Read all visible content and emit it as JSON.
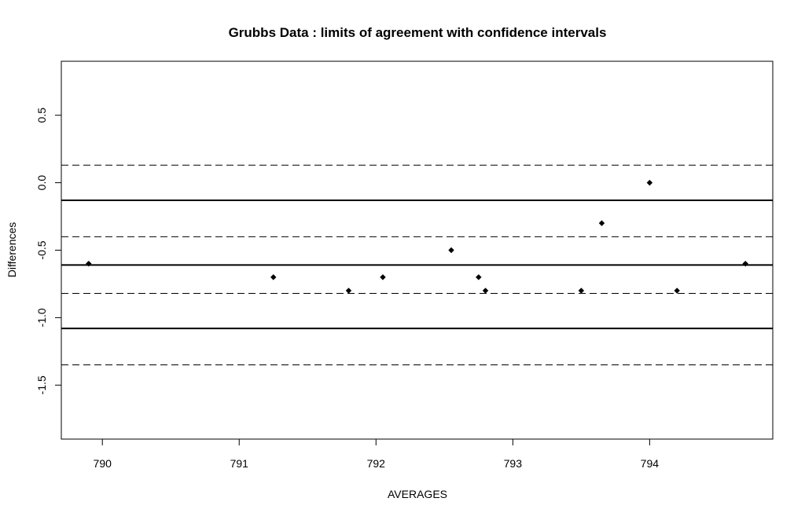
{
  "chart_data": {
    "type": "scatter",
    "title": "Grubbs Data : limits of agreement with confidence intervals",
    "xlabel": "AVERAGES",
    "ylabel": "Differences",
    "xlim": [
      789.7,
      794.9
    ],
    "ylim": [
      -1.9,
      0.9
    ],
    "x_ticks": [
      790,
      791,
      792,
      793,
      794
    ],
    "x_tick_labels": [
      "790",
      "791",
      "792",
      "793",
      "794"
    ],
    "y_ticks": [
      0.5,
      0.0,
      -0.5,
      -1.0,
      -1.5
    ],
    "y_tick_labels": [
      "0.5",
      "0.0",
      "-0.5",
      "-1.0",
      "-1.5"
    ],
    "grid": false,
    "points": [
      {
        "x": 789.9,
        "y": -0.6
      },
      {
        "x": 791.25,
        "y": -0.7
      },
      {
        "x": 791.8,
        "y": -0.8
      },
      {
        "x": 792.05,
        "y": -0.7
      },
      {
        "x": 792.55,
        "y": -0.5
      },
      {
        "x": 792.75,
        "y": -0.7
      },
      {
        "x": 792.8,
        "y": -0.8
      },
      {
        "x": 793.5,
        "y": -0.8
      },
      {
        "x": 793.65,
        "y": -0.3
      },
      {
        "x": 794.0,
        "y": 0.0
      },
      {
        "x": 794.2,
        "y": -0.8
      },
      {
        "x": 794.7,
        "y": -0.6
      }
    ],
    "solid_lines": [
      {
        "name": "upper-limit",
        "y": -0.13
      },
      {
        "name": "mean-difference",
        "y": -0.61
      },
      {
        "name": "lower-limit",
        "y": -1.08
      }
    ],
    "dashed_lines": [
      {
        "name": "upper-limit-ci-upper",
        "y": 0.13
      },
      {
        "name": "upper-limit-ci-lower",
        "y": -0.4
      },
      {
        "name": "lower-limit-ci-upper",
        "y": -0.82
      },
      {
        "name": "lower-limit-ci-lower",
        "y": -1.35
      }
    ],
    "colors": {
      "points": "#000000",
      "lines": "#000000",
      "background": "#ffffff"
    }
  }
}
